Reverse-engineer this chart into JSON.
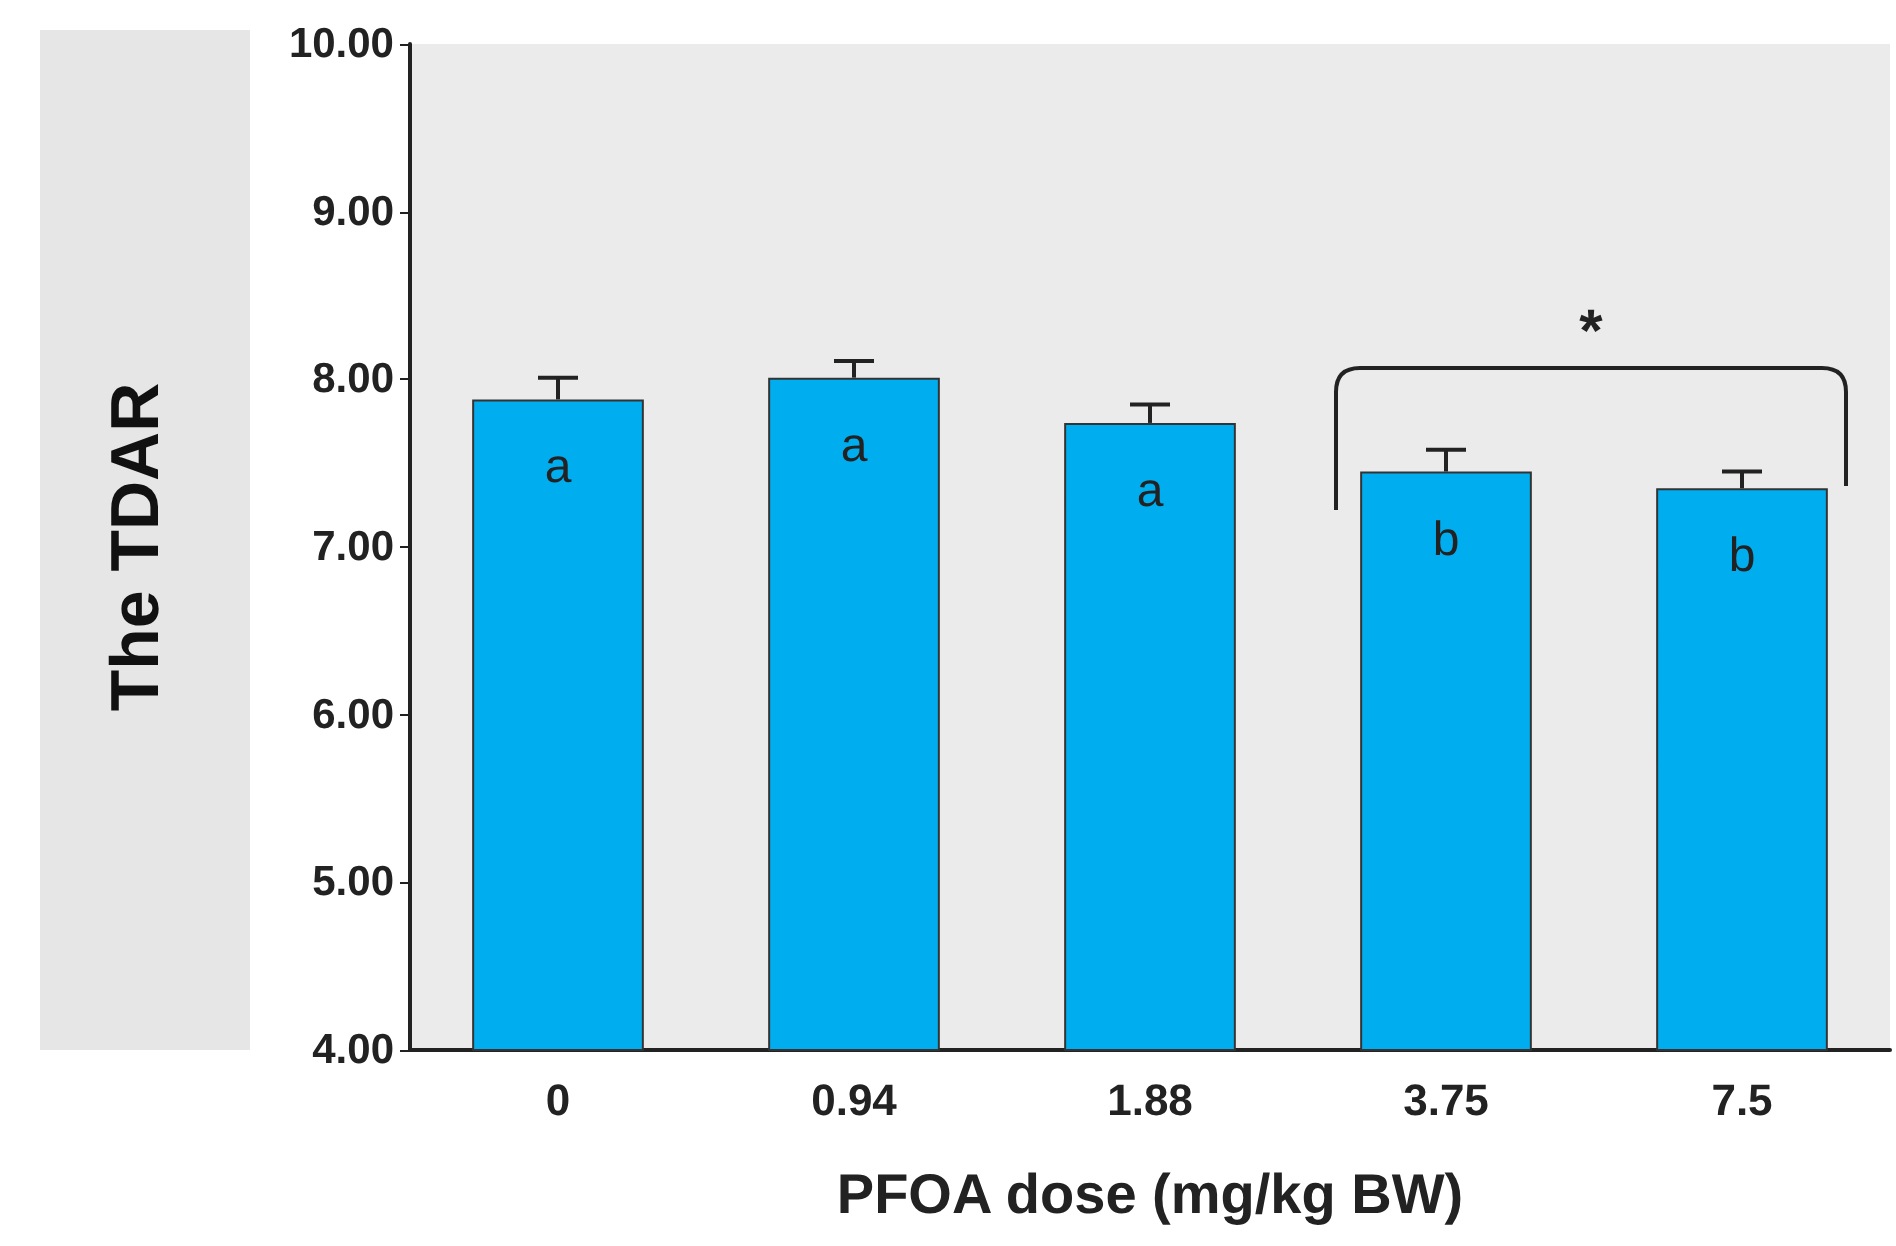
{
  "chart_data": {
    "type": "bar",
    "xlabel": "PFOA dose (mg/kg BW)",
    "ylabel": "The TDAR",
    "categories": [
      "0",
      "0.94",
      "1.88",
      "3.75",
      "7.5"
    ],
    "values": [
      7.88,
      8.01,
      7.74,
      7.45,
      7.35
    ],
    "errors": [
      [
        7.88,
        8.01
      ],
      [
        8.01,
        8.11
      ],
      [
        7.74,
        7.85
      ],
      [
        7.45,
        7.58
      ],
      [
        7.35,
        7.45
      ]
    ],
    "color": "#00aeef",
    "ylim": [
      4,
      10
    ],
    "yticks": [
      {
        "value": 4,
        "label": "4.00"
      },
      {
        "value": 5,
        "label": "5.00"
      },
      {
        "value": 6,
        "label": "6.00"
      },
      {
        "value": 7,
        "label": "7.00"
      },
      {
        "value": 8,
        "label": "8.00"
      },
      {
        "value": 9,
        "label": "9.00"
      },
      {
        "value": 10,
        "label": "10.00"
      }
    ],
    "grid": false,
    "annotations": [
      "a",
      "a",
      "a",
      "b",
      "b",
      "*"
    ]
  }
}
